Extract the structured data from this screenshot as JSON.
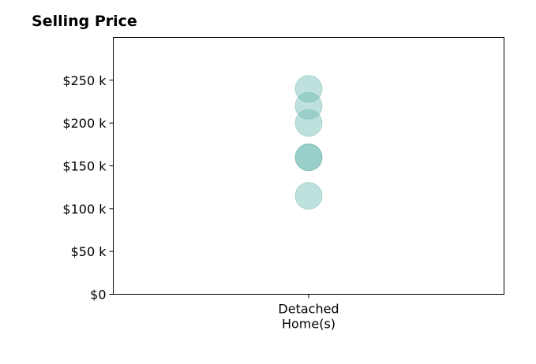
{
  "chart_data": {
    "type": "scatter",
    "title": "Selling Price",
    "xlabel": "",
    "ylabel": "",
    "categories": [
      [
        "Detached",
        "Home(s)"
      ]
    ],
    "ylim": [
      0,
      300000
    ],
    "yticks": [
      0,
      50000,
      100000,
      150000,
      200000,
      250000
    ],
    "ytick_labels": [
      "$0",
      "$50 k",
      "$100 k",
      "$150 k",
      "$200 k",
      "$250 k"
    ],
    "grid": false,
    "series": [
      {
        "points": [
          {
            "category": 0,
            "y": 240000
          },
          {
            "category": 0,
            "y": 220000
          },
          {
            "category": 0,
            "y": 200000
          },
          {
            "category": 0,
            "y": 160000
          },
          {
            "category": 0,
            "y": 160000
          },
          {
            "category": 0,
            "y": 115000
          }
        ]
      }
    ],
    "colors": {
      "point_fill": "#66b8ad",
      "point_stroke": "#4fa89c"
    }
  }
}
